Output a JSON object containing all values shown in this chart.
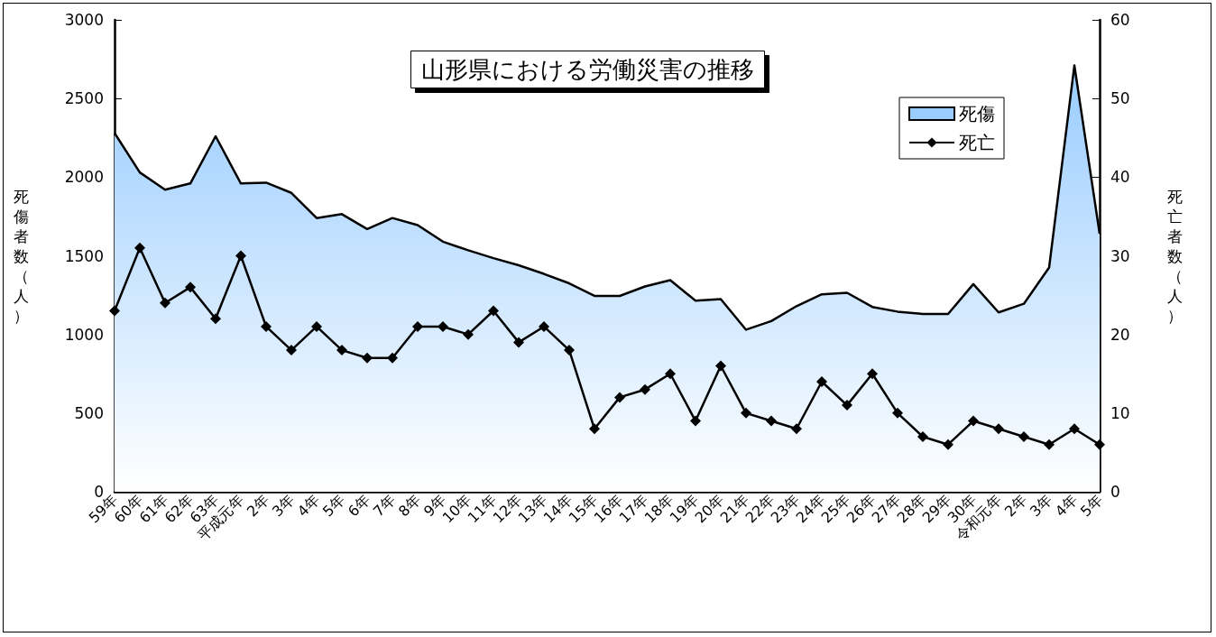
{
  "chart_data": {
    "type": "area",
    "title": "山形県における労働災害の推移",
    "categories": [
      "59年",
      "60年",
      "61年",
      "62年",
      "63年",
      "平成元年",
      "2年",
      "3年",
      "4年",
      "5年",
      "6年",
      "7年",
      "8年",
      "9年",
      "10年",
      "11年",
      "12年",
      "13年",
      "14年",
      "15年",
      "16年",
      "17年",
      "18年",
      "19年",
      "20年",
      "21年",
      "22年",
      "23年",
      "24年",
      "25年",
      "26年",
      "27年",
      "28年",
      "29年",
      "30年",
      "令和元年",
      "2年",
      "3年",
      "4年",
      "5年"
    ],
    "series": [
      {
        "name": "死傷",
        "color": "#99ccff",
        "values": [
          2280,
          2030,
          1920,
          1960,
          2260,
          1960,
          1965,
          1900,
          1740,
          1765,
          1670,
          1740,
          1695,
          1590,
          1535,
          1485,
          1440,
          1385,
          1325,
          1245,
          1245,
          1305,
          1345,
          1215,
          1225,
          1030,
          1085,
          1180,
          1255,
          1265,
          1175,
          1145,
          1130,
          1130,
          1320,
          1140,
          1195,
          1425,
          2710,
          1640
        ]
      },
      {
        "name": "死亡",
        "type": "line",
        "axis": "y2",
        "color": "#000000",
        "marker": "diamond",
        "values": [
          23,
          31,
          24,
          26,
          22,
          30,
          21,
          18,
          21,
          18,
          17,
          17,
          21,
          21,
          20,
          23,
          19,
          21,
          18,
          8,
          12,
          13,
          15,
          9,
          16,
          10,
          9,
          8,
          14,
          11,
          15,
          10,
          7,
          6,
          9,
          8,
          7,
          6,
          8,
          6
        ]
      }
    ],
    "ylabel": "死傷者数（人）",
    "y2label": "死亡者数（人）",
    "ylim": [
      0,
      3000
    ],
    "yticks": [
      0,
      500,
      1000,
      1500,
      2000,
      2500,
      3000
    ],
    "y2lim": [
      0,
      60
    ],
    "y2ticks": [
      0,
      10,
      20,
      30,
      40,
      50,
      60
    ],
    "legend": "top right"
  }
}
